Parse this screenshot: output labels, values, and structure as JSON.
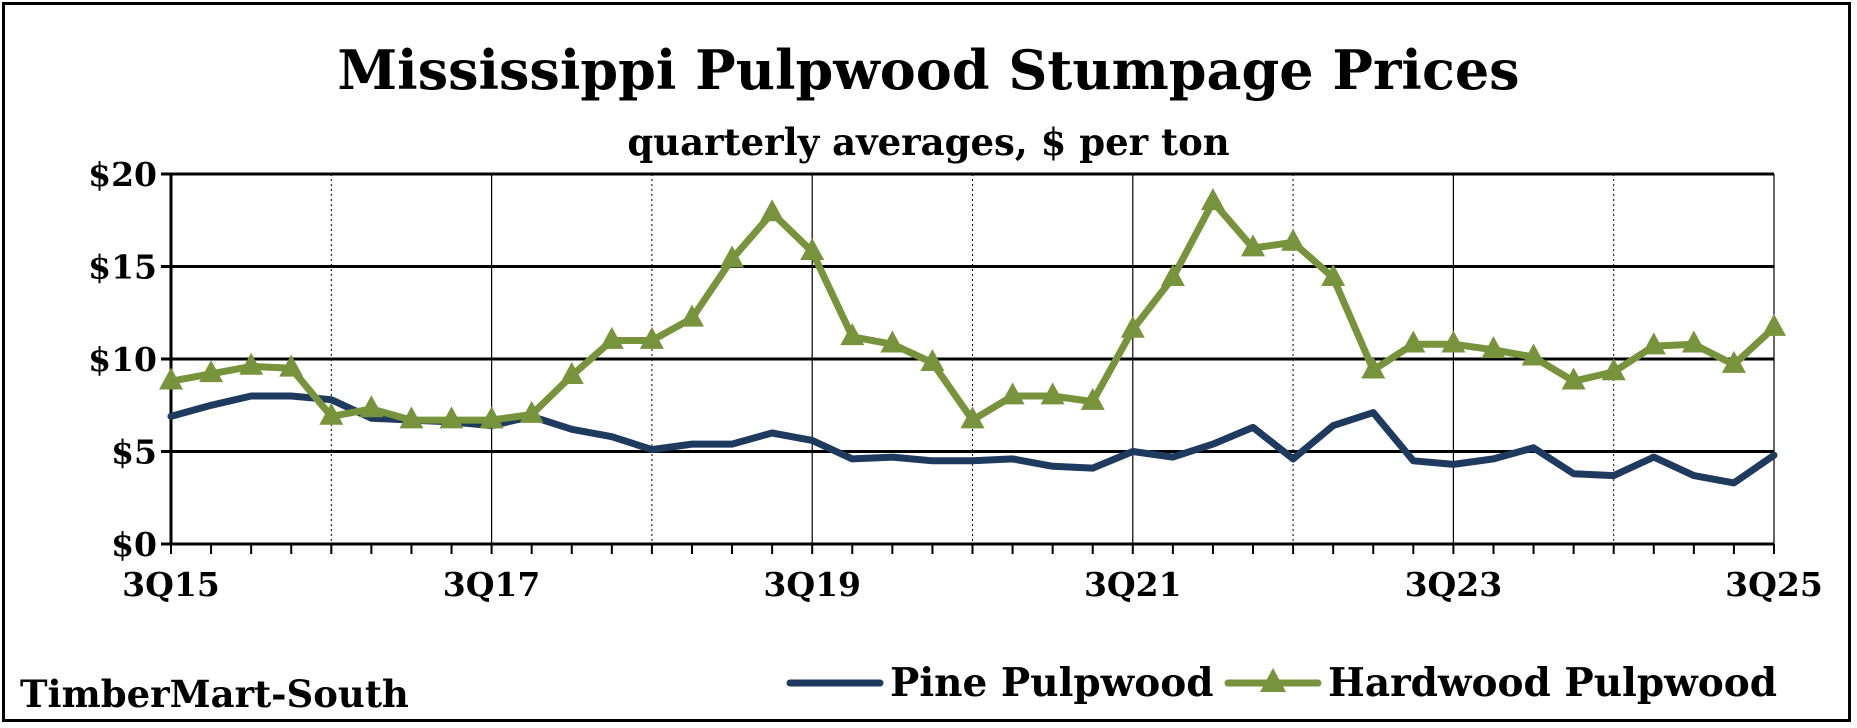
{
  "title": "Mississippi Pulpwood Stumpage Prices",
  "subtitle": "quarterly averages, $ per ton",
  "source": "TimberMart-South",
  "colors": {
    "pine": "#1f3a5f",
    "hardwood": "#77933c",
    "grid": "#000000"
  },
  "chart_data": {
    "type": "line",
    "title": "Mississippi Pulpwood Stumpage Prices",
    "subtitle": "quarterly averages, $ per ton",
    "x": [
      "3Q15",
      "4Q15",
      "1Q16",
      "2Q16",
      "3Q16",
      "4Q16",
      "1Q17",
      "2Q17",
      "3Q17",
      "4Q17",
      "1Q18",
      "2Q18",
      "3Q18",
      "4Q18",
      "1Q19",
      "2Q19",
      "3Q19",
      "4Q19",
      "1Q20",
      "2Q20",
      "3Q20",
      "4Q20",
      "1Q21",
      "2Q21",
      "3Q21",
      "4Q21",
      "1Q22",
      "2Q22",
      "3Q22",
      "4Q22",
      "1Q23",
      "2Q23",
      "3Q23",
      "4Q23",
      "1Q24",
      "2Q24",
      "3Q24",
      "4Q24",
      "1Q25",
      "2Q25",
      "3Q25"
    ],
    "x_tick_labels": [
      "3Q15",
      "3Q17",
      "3Q19",
      "3Q21",
      "3Q23",
      "3Q25"
    ],
    "y_tick_labels": [
      "$0",
      "$5",
      "$10",
      "$15",
      "$20"
    ],
    "ylim": [
      0,
      20
    ],
    "xlabel": "",
    "ylabel": "",
    "grid": true,
    "legend_position": "bottom-right",
    "series": [
      {
        "name": "Pine Pulpwood",
        "marker": "none",
        "values": [
          6.9,
          7.5,
          8.0,
          8.0,
          7.8,
          6.8,
          6.7,
          6.6,
          6.4,
          6.9,
          6.2,
          5.8,
          5.1,
          5.4,
          5.4,
          6.0,
          5.6,
          4.6,
          4.7,
          4.5,
          4.5,
          4.6,
          4.2,
          4.1,
          5.0,
          4.7,
          5.4,
          6.3,
          4.6,
          6.4,
          7.1,
          4.5,
          4.3,
          4.6,
          5.2,
          3.8,
          3.7,
          4.7,
          3.7,
          3.3,
          4.8
        ]
      },
      {
        "name": "Hardwood Pulpwood",
        "marker": "triangle",
        "values": [
          8.8,
          9.2,
          9.6,
          9.5,
          6.9,
          7.3,
          6.7,
          6.7,
          6.7,
          7.0,
          9.1,
          11.0,
          11.0,
          12.2,
          15.4,
          17.9,
          15.8,
          11.2,
          10.8,
          9.8,
          6.7,
          8.0,
          8.0,
          7.7,
          11.6,
          14.4,
          18.5,
          16.0,
          16.3,
          14.4,
          9.4,
          10.8,
          10.8,
          10.5,
          10.1,
          8.8,
          9.3,
          10.7,
          10.8,
          9.7,
          11.7
        ]
      }
    ]
  }
}
